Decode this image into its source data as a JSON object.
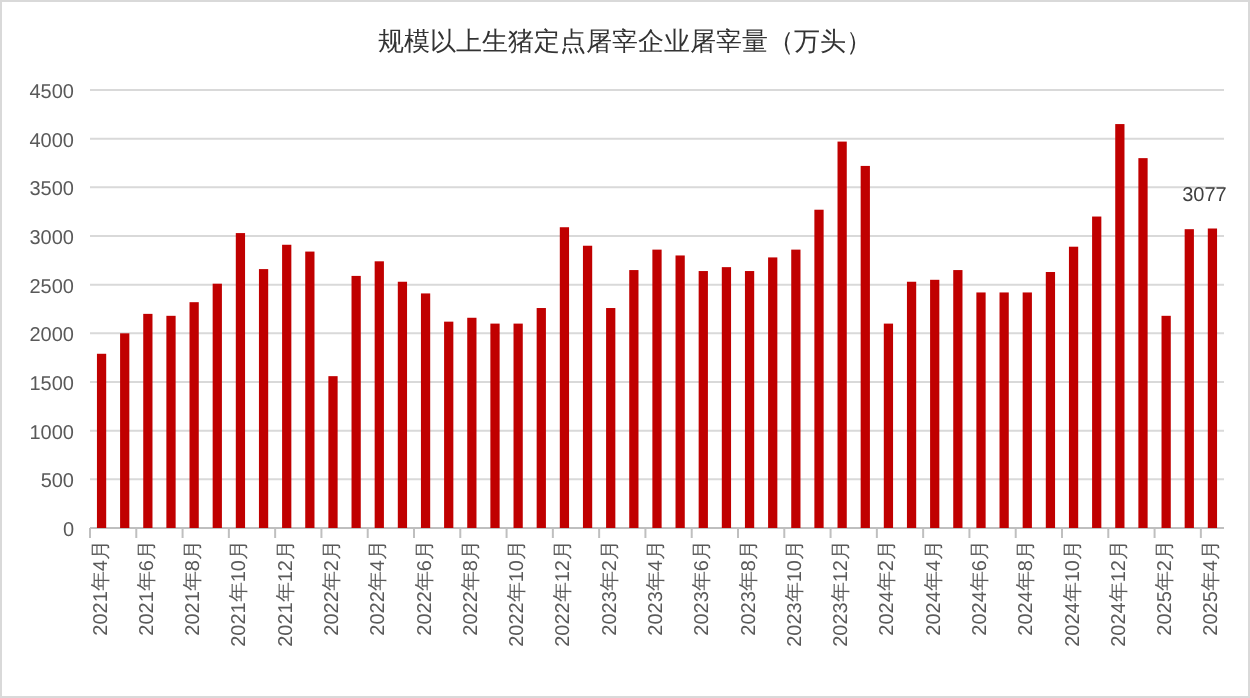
{
  "chart_data": {
    "type": "bar",
    "title": "规模以上生猪定点屠宰企业屠宰量（万头）",
    "categories": [
      "2021年4月",
      null,
      "2021年6月",
      null,
      "2021年8月",
      null,
      "2021年10月",
      null,
      "2021年12月",
      null,
      "2022年2月",
      null,
      "2022年4月",
      null,
      "2022年6月",
      null,
      "2022年8月",
      null,
      "2022年10月",
      null,
      "2022年12月",
      null,
      "2023年2月",
      null,
      "2023年4月",
      null,
      "2023年6月",
      null,
      "2023年8月",
      null,
      "2023年10月",
      null,
      "2023年12月",
      null,
      "2024年2月",
      null,
      "2024年4月",
      null,
      "2024年6月",
      null,
      "2024年8月",
      null,
      "2024年10月",
      null,
      "2024年12月",
      null,
      "2025年2月",
      null,
      "2025年4月"
    ],
    "series": [
      {
        "color": "#c00000",
        "values": [
          1790,
          2000,
          2200,
          2180,
          2320,
          2510,
          3030,
          2660,
          2910,
          2840,
          1560,
          2590,
          2740,
          2530,
          2410,
          2120,
          2160,
          2100,
          2100,
          2260,
          3090,
          2900,
          2260,
          2650,
          2860,
          2800,
          2640,
          2680,
          2640,
          2780,
          2860,
          3270,
          3970,
          3720,
          2100,
          2530,
          2550,
          2650,
          2420,
          2420,
          2420,
          2630,
          2890,
          3200,
          4150,
          3800,
          2180,
          3070,
          3077
        ],
        "value_labels": [
          null,
          null,
          null,
          null,
          null,
          null,
          null,
          null,
          null,
          null,
          null,
          null,
          null,
          null,
          null,
          null,
          null,
          null,
          null,
          null,
          null,
          null,
          null,
          null,
          null,
          null,
          null,
          null,
          null,
          null,
          null,
          null,
          null,
          null,
          null,
          null,
          null,
          null,
          null,
          null,
          null,
          null,
          null,
          null,
          null,
          null,
          null,
          null,
          "3077"
        ]
      }
    ],
    "ylim": [
      0,
      4500
    ],
    "yticks": [
      0,
      500,
      1000,
      1500,
      2000,
      2500,
      3000,
      3500,
      4000,
      4500
    ],
    "grid": "y"
  }
}
